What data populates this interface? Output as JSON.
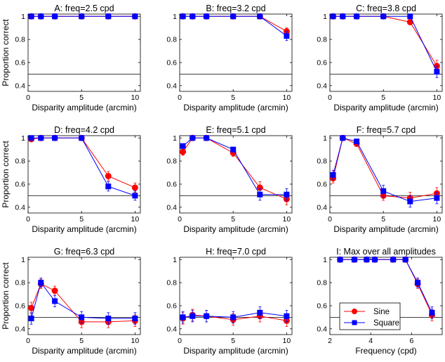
{
  "figure": {
    "ylabel": "Proportion correct",
    "xlabel": "Disparity amplitude (arcmin)"
  },
  "legend": {
    "sine": "Sine",
    "square": "Square"
  },
  "colors": {
    "sine": "#ff0000",
    "square": "#0000ff",
    "axis": "#000000"
  },
  "chart_data": [
    {
      "type": "line",
      "title": "A: freq=2.5 cpd",
      "xlabel": "Disparity amplitude (arcmin)",
      "ylabel": "Proportion correct",
      "xlim": [
        0,
        10.5
      ],
      "ylim": [
        0.35,
        1.02
      ],
      "xticks": [
        0,
        5,
        10
      ],
      "yticks": [
        0.4,
        0.6,
        0.8,
        1
      ],
      "chance": 0.5,
      "x": [
        0.3,
        1.2,
        2.5,
        5,
        7.5,
        10
      ],
      "series": [
        {
          "name": "Sine",
          "values": [
            1,
            1,
            1,
            1,
            1,
            1
          ],
          "err": [
            0,
            0,
            0,
            0,
            0,
            0
          ]
        },
        {
          "name": "Square",
          "values": [
            1,
            1,
            1,
            1,
            1,
            1
          ],
          "err": [
            0,
            0,
            0,
            0,
            0,
            0
          ]
        }
      ]
    },
    {
      "type": "line",
      "title": "B: freq=3.2 cpd",
      "xlabel": "Disparity amplitude (arcmin)",
      "ylabel": "",
      "xlim": [
        0,
        10.5
      ],
      "ylim": [
        0.35,
        1.02
      ],
      "xticks": [
        0,
        5,
        10
      ],
      "yticks": [
        0.4,
        0.6,
        0.8,
        1
      ],
      "chance": 0.5,
      "x": [
        0.3,
        1.2,
        2.5,
        5,
        7.5,
        10
      ],
      "series": [
        {
          "name": "Sine",
          "values": [
            1,
            1,
            1,
            1,
            1,
            0.87
          ],
          "err": [
            0,
            0,
            0,
            0,
            0,
            0.03
          ]
        },
        {
          "name": "Square",
          "values": [
            1,
            1,
            1,
            1,
            1,
            0.83
          ],
          "err": [
            0,
            0,
            0,
            0,
            0,
            0.04
          ]
        }
      ]
    },
    {
      "type": "line",
      "title": "C: freq=3.8 cpd",
      "xlabel": "Disparity amplitude (arcmin)",
      "ylabel": "",
      "xlim": [
        0,
        10.5
      ],
      "ylim": [
        0.35,
        1.02
      ],
      "xticks": [
        0,
        5,
        10
      ],
      "yticks": [
        0.4,
        0.6,
        0.8,
        1
      ],
      "chance": 0.5,
      "x": [
        0.3,
        1.2,
        2.5,
        5,
        7.5,
        10
      ],
      "series": [
        {
          "name": "Sine",
          "values": [
            1,
            1,
            1,
            1,
            0.95,
            0.57
          ],
          "err": [
            0,
            0,
            0,
            0,
            0.02,
            0.05
          ]
        },
        {
          "name": "Square",
          "values": [
            1,
            1,
            1,
            1,
            1,
            0.52
          ],
          "err": [
            0,
            0,
            0,
            0,
            0,
            0.05
          ]
        }
      ]
    },
    {
      "type": "line",
      "title": "D: freq=4.2 cpd",
      "xlabel": "Disparity amplitude (arcmin)",
      "ylabel": "Proportion correct",
      "xlim": [
        0,
        10.5
      ],
      "ylim": [
        0.35,
        1.02
      ],
      "xticks": [
        0,
        5,
        10
      ],
      "yticks": [
        0.4,
        0.6,
        0.8,
        1
      ],
      "chance": 0.5,
      "x": [
        0.3,
        1.2,
        2.5,
        5,
        7.5,
        10
      ],
      "series": [
        {
          "name": "Sine",
          "values": [
            0.99,
            1,
            1,
            1,
            0.67,
            0.57
          ],
          "err": [
            0,
            0,
            0,
            0,
            0.04,
            0.04
          ]
        },
        {
          "name": "Square",
          "values": [
            1,
            1,
            1,
            1,
            0.58,
            0.5
          ],
          "err": [
            0,
            0,
            0,
            0,
            0.04,
            0.04
          ]
        }
      ]
    },
    {
      "type": "line",
      "title": "E: freq=5.1 cpd",
      "xlabel": "Disparity amplitude (arcmin)",
      "ylabel": "",
      "xlim": [
        0,
        10.5
      ],
      "ylim": [
        0.35,
        1.02
      ],
      "xticks": [
        0,
        5,
        10
      ],
      "yticks": [
        0.4,
        0.6,
        0.8,
        1
      ],
      "chance": 0.5,
      "x": [
        0.3,
        1.2,
        2.5,
        5,
        7.5,
        10
      ],
      "series": [
        {
          "name": "Sine",
          "values": [
            0.88,
            1,
            1,
            0.87,
            0.57,
            0.47
          ],
          "err": [
            0.03,
            0,
            0,
            0.03,
            0.05,
            0.05
          ]
        },
        {
          "name": "Square",
          "values": [
            0.93,
            1,
            1,
            0.9,
            0.51,
            0.51
          ],
          "err": [
            0.02,
            0,
            0,
            0.02,
            0.05,
            0.05
          ]
        }
      ]
    },
    {
      "type": "line",
      "title": "F: freq=5.7 cpd",
      "xlabel": "Disparity amplitude (arcmin)",
      "ylabel": "",
      "xlim": [
        0,
        10.5
      ],
      "ylim": [
        0.35,
        1.02
      ],
      "xticks": [
        0,
        5,
        10
      ],
      "yticks": [
        0.4,
        0.6,
        0.8,
        1
      ],
      "chance": 0.5,
      "x": [
        0.3,
        1.2,
        2.5,
        5,
        7.5,
        10
      ],
      "series": [
        {
          "name": "Sine",
          "values": [
            0.65,
            1,
            0.95,
            0.5,
            0.48,
            0.52
          ],
          "err": [
            0.04,
            0,
            0.02,
            0.04,
            0.05,
            0.05
          ]
        },
        {
          "name": "Square",
          "values": [
            0.68,
            1,
            0.97,
            0.54,
            0.45,
            0.48
          ],
          "err": [
            0.04,
            0,
            0.02,
            0.05,
            0.05,
            0.05
          ]
        }
      ]
    },
    {
      "type": "line",
      "title": "G: freq=6.3 cpd",
      "xlabel": "Disparity amplitude (arcmin)",
      "ylabel": "Proportion correct",
      "xlim": [
        0,
        10.5
      ],
      "ylim": [
        0.35,
        1.02
      ],
      "xticks": [
        0,
        5,
        10
      ],
      "yticks": [
        0.4,
        0.6,
        0.8,
        1
      ],
      "chance": 0.5,
      "x": [
        0.3,
        1.2,
        2.5,
        5,
        7.5,
        10
      ],
      "series": [
        {
          "name": "Sine",
          "values": [
            0.58,
            0.79,
            0.73,
            0.46,
            0.46,
            0.47
          ],
          "err": [
            0.05,
            0.04,
            0.04,
            0.05,
            0.05,
            0.05
          ]
        },
        {
          "name": "Square",
          "values": [
            0.49,
            0.8,
            0.64,
            0.5,
            0.49,
            0.49
          ],
          "err": [
            0.05,
            0.04,
            0.05,
            0.05,
            0.05,
            0.05
          ]
        }
      ]
    },
    {
      "type": "line",
      "title": "H: freq=7.0 cpd",
      "xlabel": "Disparity amplitude (arcmin)",
      "ylabel": "",
      "xlim": [
        0,
        10.5
      ],
      "ylim": [
        0.35,
        1.02
      ],
      "xticks": [
        0,
        5,
        10
      ],
      "yticks": [
        0.4,
        0.6,
        0.8,
        1
      ],
      "chance": 0.5,
      "x": [
        0.3,
        1.2,
        2.5,
        5,
        7.5,
        10
      ],
      "series": [
        {
          "name": "Sine",
          "values": [
            0.49,
            0.52,
            0.51,
            0.48,
            0.51,
            0.47
          ],
          "err": [
            0.05,
            0.05,
            0.05,
            0.05,
            0.05,
            0.05
          ]
        },
        {
          "name": "Square",
          "values": [
            0.5,
            0.51,
            0.51,
            0.5,
            0.54,
            0.51
          ],
          "err": [
            0.05,
            0.05,
            0.05,
            0.05,
            0.05,
            0.05
          ]
        }
      ]
    },
    {
      "type": "line",
      "title": "I: Max over all amplitudes",
      "xlabel": "Frequency (cpd)",
      "ylabel": "",
      "xlim": [
        2,
        7.5
      ],
      "ylim": [
        0.35,
        1.02
      ],
      "xticks": [
        2,
        4,
        6
      ],
      "yticks": [
        0.4,
        0.6,
        0.8,
        1
      ],
      "chance": 0.5,
      "legend": [
        "Sine",
        "Square"
      ],
      "legend_position": "bottom-left",
      "x": [
        2.5,
        3.2,
        3.8,
        4.2,
        5.1,
        5.7,
        6.3,
        7.0
      ],
      "series": [
        {
          "name": "Sine",
          "values": [
            1,
            1,
            1,
            1,
            1,
            1,
            0.79,
            0.52
          ],
          "err": [
            0,
            0,
            0,
            0,
            0,
            0,
            0.04,
            0.05
          ]
        },
        {
          "name": "Square",
          "values": [
            1,
            1,
            1,
            1,
            1,
            1,
            0.8,
            0.54
          ],
          "err": [
            0,
            0,
            0,
            0,
            0,
            0,
            0.04,
            0.05
          ]
        }
      ]
    }
  ]
}
